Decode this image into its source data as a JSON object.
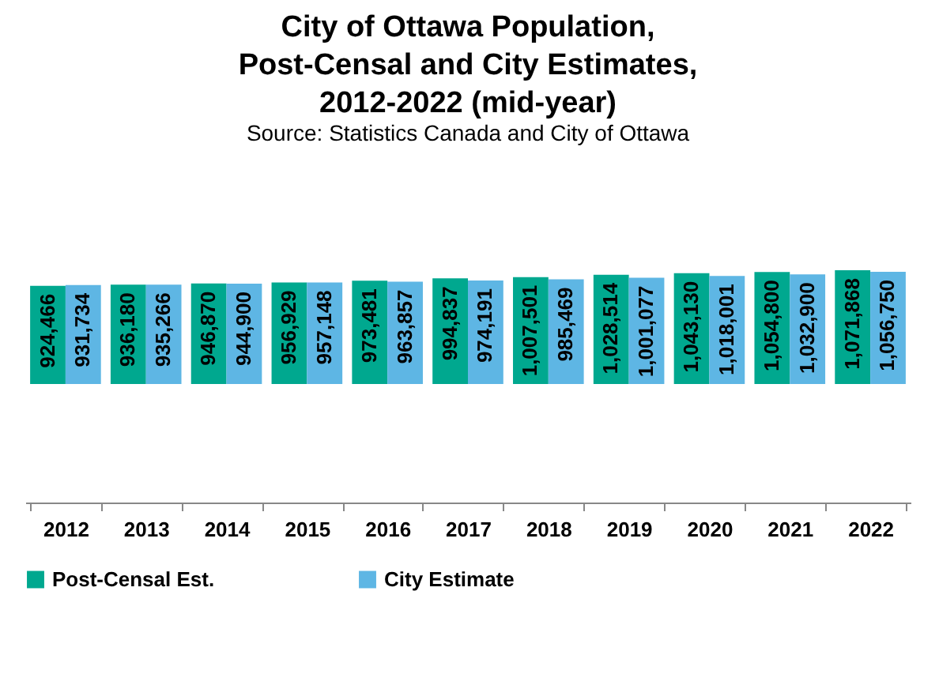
{
  "chart_data": {
    "type": "bar",
    "title": "City of Ottawa Population,\nPost-Censal and City Estimates,\n2012-2022 (mid-year)",
    "subtitle": "Source: Statistics Canada and City of Ottawa",
    "categories": [
      "2012",
      "2013",
      "2014",
      "2015",
      "2016",
      "2017",
      "2018",
      "2019",
      "2020",
      "2021",
      "2022"
    ],
    "series": [
      {
        "name": "Post-Censal Est.",
        "color": "#00a88f",
        "values": [
          924466,
          936180,
          946870,
          956929,
          973481,
          994837,
          1007501,
          1028514,
          1043130,
          1054800,
          1071868
        ],
        "value_labels": [
          "924,466",
          "936,180",
          "946,870",
          "956,929",
          "973,481",
          "994,837",
          "1,007,501",
          "1,028,514",
          "1,043,130",
          "1,054,800",
          "1,071,868"
        ]
      },
      {
        "name": "City Estimate",
        "color": "#5eb6e4",
        "values": [
          931734,
          935266,
          944900,
          957148,
          963857,
          974191,
          985469,
          1001077,
          1018001,
          1032900,
          1056750
        ],
        "value_labels": [
          "931,734",
          "935,266",
          "944,900",
          "957,148",
          "963,857",
          "974,191",
          "985,469",
          "1,001,077",
          "1,018,001",
          "1,032,900",
          "1,056,750"
        ]
      }
    ],
    "legend": "bottom"
  }
}
